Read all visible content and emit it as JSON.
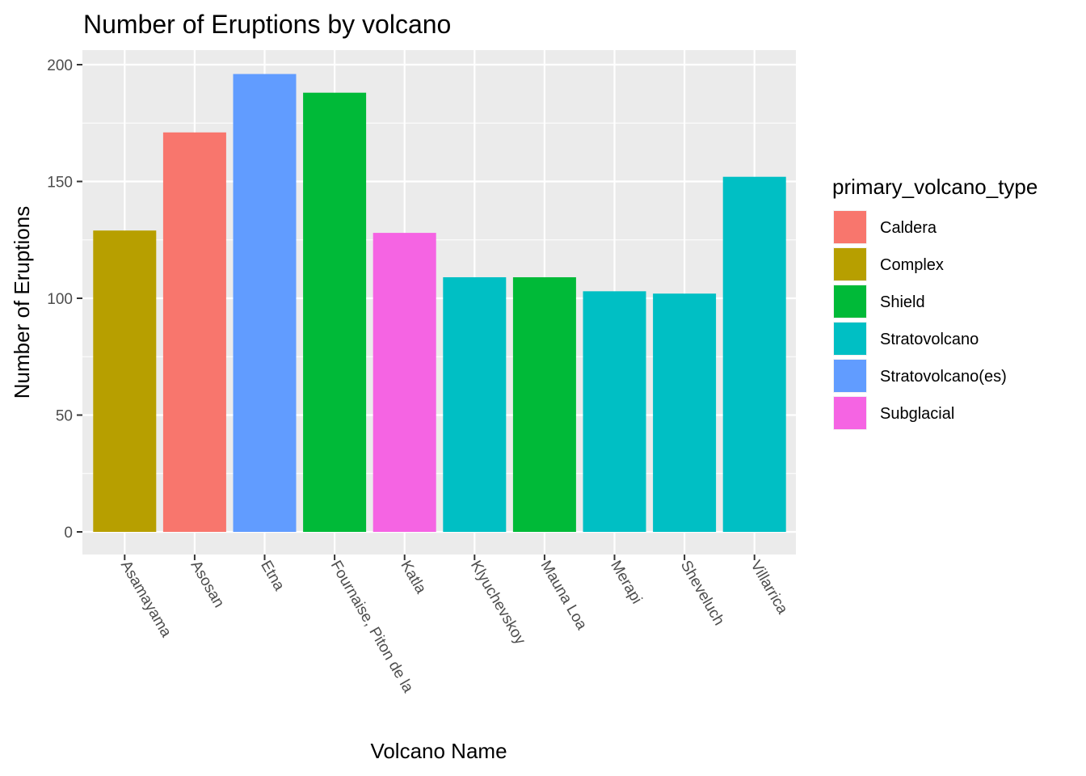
{
  "chart_data": {
    "type": "bar",
    "title": "Number of Eruptions by volcano",
    "xlabel": "Volcano Name",
    "ylabel": "Number of Eruptions",
    "ylim": [
      0,
      200
    ],
    "yticks": [
      0,
      50,
      100,
      150,
      200
    ],
    "grid": true,
    "categories": [
      "Asamayama",
      "Asosan",
      "Etna",
      "Fournaise, Piton de la",
      "Katla",
      "Klyuchevskoy",
      "Mauna Loa",
      "Merapi",
      "Sheveluch",
      "Villarrica"
    ],
    "values": [
      129,
      171,
      196,
      188,
      128,
      109,
      109,
      103,
      102,
      152
    ],
    "types": [
      "Complex",
      "Caldera",
      "Stratovolcano(es)",
      "Shield",
      "Subglacial",
      "Stratovolcano",
      "Shield",
      "Stratovolcano",
      "Stratovolcano",
      "Stratovolcano"
    ],
    "legend": {
      "title": "primary_volcano_type",
      "position": "right",
      "entries": [
        {
          "name": "Caldera",
          "color": "#F8766D"
        },
        {
          "name": "Complex",
          "color": "#B79F00"
        },
        {
          "name": "Shield",
          "color": "#00BA38"
        },
        {
          "name": "Stratovolcano",
          "color": "#00BFC4"
        },
        {
          "name": "Stratovolcano(es)",
          "color": "#619CFF"
        },
        {
          "name": "Subglacial",
          "color": "#F564E3"
        }
      ]
    },
    "colors": {
      "panel": "#EBEBEB",
      "grid": "#FFFFFF"
    }
  }
}
